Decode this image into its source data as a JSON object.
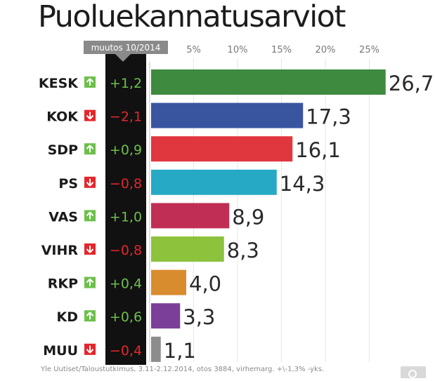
{
  "title": "Puoluekannatusarviot",
  "source": "Yle Uutiset/Taloustutkimus, 3.11-2.12.2014, otos 3884, virhemarg. +\\-1,3% -yks.",
  "change_header": "muutos 10/2014",
  "colors": {
    "up": "#6cc04a",
    "down": "#e3262b",
    "change_column": "#111111"
  },
  "icons": {
    "up": "arrow-up-icon",
    "down": "arrow-down-icon",
    "zoom": "magnifier-icon"
  },
  "chart_data": {
    "type": "bar",
    "orientation": "horizontal",
    "categories": [
      "KESK",
      "KOK",
      "SDP",
      "PS",
      "VAS",
      "VIHR",
      "RKP",
      "KD",
      "MUU"
    ],
    "values": [
      26.7,
      17.3,
      16.1,
      14.3,
      8.9,
      8.3,
      4.0,
      3.3,
      1.1
    ],
    "value_labels": [
      "26,7",
      "17,3",
      "16,1",
      "14,3",
      "8,9",
      "8,3",
      "4,0",
      "3,3",
      "1,1"
    ],
    "changes": [
      1.2,
      -2.1,
      0.9,
      -0.8,
      1.0,
      -0.8,
      0.4,
      0.6,
      -0.4
    ],
    "change_labels": [
      "+1,2",
      "−2,1",
      "+0,9",
      "−0,8",
      "+1,0",
      "−0,8",
      "+0,4",
      "+0,6",
      "−0,4"
    ],
    "bar_colors": [
      "#3e8a3e",
      "#3a55a0",
      "#e0363e",
      "#26a9c4",
      "#c02e56",
      "#8cc23c",
      "#d98c2e",
      "#7b3f9a",
      "#8c8c8c"
    ],
    "tick_values": [
      5,
      10,
      15,
      20,
      25
    ],
    "tick_labels": [
      "5%",
      "10%",
      "15%",
      "20%",
      "25%"
    ],
    "xlim": [
      0,
      27
    ],
    "grid": true
  }
}
